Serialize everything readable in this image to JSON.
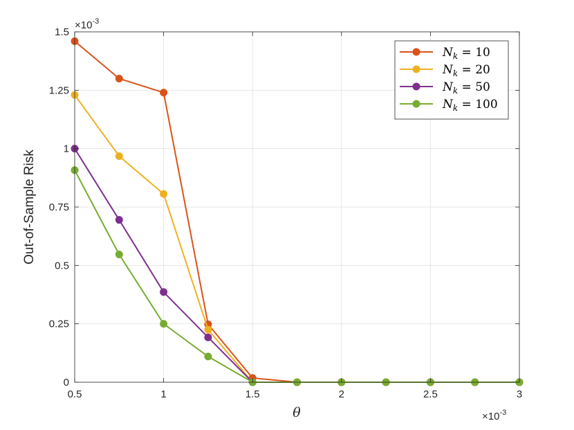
{
  "chart_data": {
    "type": "line",
    "title": "",
    "xlabel": "θ",
    "ylabel": "Out-of-Sample Risk",
    "x_multiplier_label": "×10",
    "x_multiplier_exp": "-3",
    "y_multiplier_label": "×10",
    "y_multiplier_exp": "-3",
    "xlim": [
      0.5,
      3
    ],
    "ylim": [
      0,
      1.5
    ],
    "xticks": [
      0.5,
      1,
      1.5,
      2,
      2.5,
      3
    ],
    "xtick_labels": [
      "0.5",
      "1",
      "1.5",
      "2",
      "2.5",
      "3"
    ],
    "yticks": [
      0,
      0.25,
      0.5,
      0.75,
      1,
      1.25,
      1.5
    ],
    "ytick_labels": [
      "0",
      "0.25",
      "0.5",
      "0.75",
      "1",
      "1.25",
      "1.5"
    ],
    "grid": true,
    "legend_position": "top-right",
    "x": [
      0.5,
      0.75,
      1,
      1.25,
      1.5,
      1.75,
      2,
      2.25,
      2.5,
      2.75,
      3
    ],
    "series": [
      {
        "name_main": "N",
        "name_sub": "k",
        "name_value": " = 10",
        "color": "#d95319",
        "values": [
          1.46,
          1.3,
          1.24,
          0.248,
          0.018,
          0,
          0,
          0,
          0,
          0,
          0
        ]
      },
      {
        "name_main": "N",
        "name_sub": "k",
        "name_value": " = 20",
        "color": "#edb120",
        "values": [
          1.23,
          0.968,
          0.806,
          0.225,
          0.0,
          0,
          0,
          0,
          0,
          0,
          0
        ]
      },
      {
        "name_main": "N",
        "name_sub": "k",
        "name_value": " = 50",
        "color": "#7e2f8e",
        "values": [
          1.0,
          0.695,
          0.386,
          0.192,
          0.0,
          0,
          0,
          0,
          0,
          0,
          0
        ]
      },
      {
        "name_main": "N",
        "name_sub": "k",
        "name_value": " = 100",
        "color": "#77ac30",
        "values": [
          0.908,
          0.547,
          0.25,
          0.11,
          0.0,
          0,
          0,
          0,
          0,
          0,
          0
        ]
      }
    ]
  }
}
